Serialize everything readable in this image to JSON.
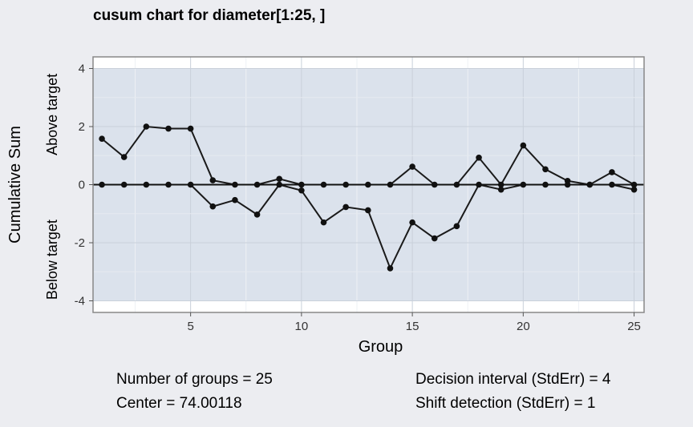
{
  "chart_data": {
    "type": "line",
    "title": "cusum chart for diameter[1:25, ]",
    "xlabel": "Group",
    "ylabel": "Cumulative Sum",
    "upper_label": "Above target",
    "lower_label": "Below target",
    "xlim": [
      0.6,
      25.45
    ],
    "ylim": [
      -4.4,
      4.4
    ],
    "xticks": [
      5,
      10,
      15,
      20,
      25
    ],
    "yticks": [
      -4,
      -2,
      0,
      2,
      4
    ],
    "decision_limits": [
      -4,
      4
    ],
    "center_line": 0,
    "x": [
      1,
      2,
      3,
      4,
      5,
      6,
      7,
      8,
      9,
      10,
      11,
      12,
      13,
      14,
      15,
      16,
      17,
      18,
      19,
      20,
      21,
      22,
      23,
      24,
      25
    ],
    "series": [
      {
        "name": "Above target",
        "values": [
          1.58,
          0.95,
          2.0,
          1.93,
          1.93,
          0.15,
          0.0,
          0.0,
          0.2,
          0.0,
          0.0,
          0.0,
          0.0,
          0.0,
          0.62,
          0.0,
          0.0,
          0.93,
          0.0,
          1.35,
          0.53,
          0.13,
          0.0,
          0.43,
          0.0
        ]
      },
      {
        "name": "Below target",
        "values": [
          0.0,
          0.0,
          0.0,
          0.0,
          0.0,
          -0.75,
          -0.53,
          -1.03,
          0.0,
          -0.2,
          -1.3,
          -0.77,
          -0.88,
          -2.88,
          -1.3,
          -1.85,
          -1.43,
          0.0,
          -0.17,
          0.0,
          0.0,
          0.0,
          0.0,
          0.0,
          -0.17
        ]
      }
    ],
    "grid": true
  },
  "stats": {
    "groups": "Number of groups = 25",
    "center": "Center = 74.00118",
    "decision": "Decision interval (StdErr) = 4",
    "shift": "Shift detection (StdErr) = 1"
  }
}
